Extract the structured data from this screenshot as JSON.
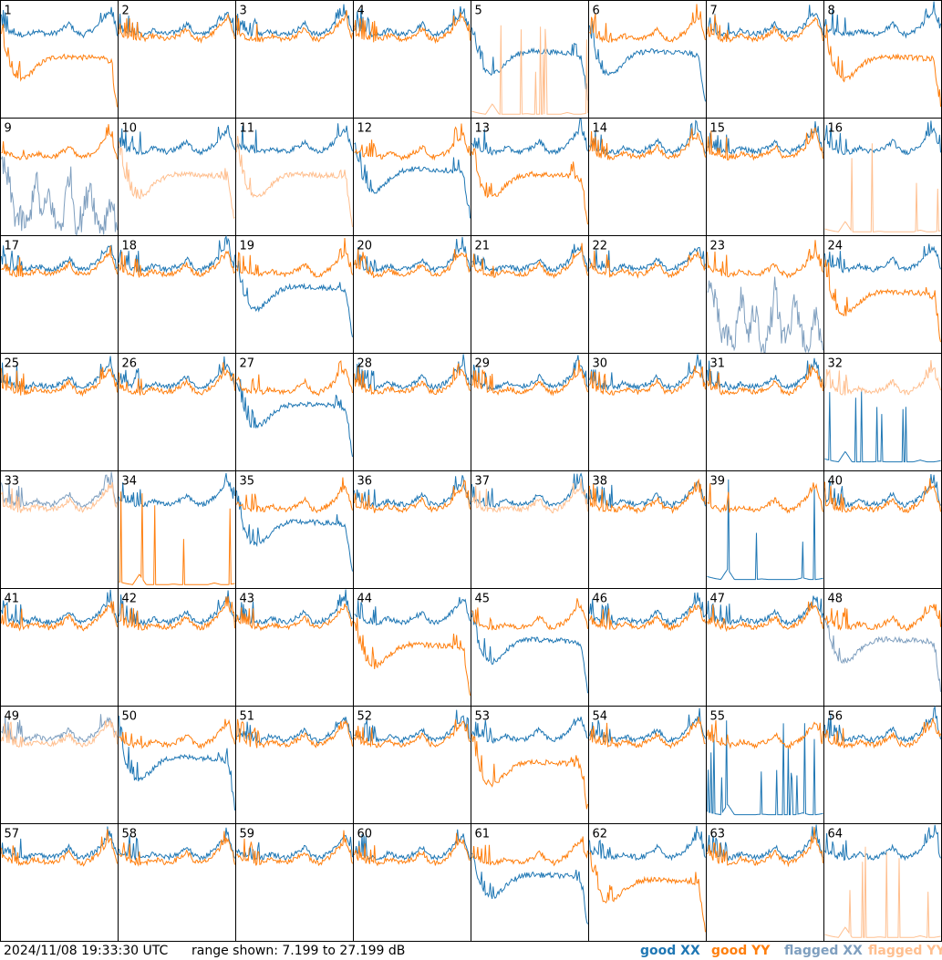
{
  "footer": {
    "timestamp": "2024/11/08 19:33:30 UTC",
    "range_text": "range shown: 7.199 to 27.199 dB"
  },
  "legend": [
    {
      "label": "good XX",
      "color": "#1f77b4"
    },
    {
      "label": "good YY",
      "color": "#ff7f0e"
    },
    {
      "label": "flagged XX",
      "color": "#7f9fbf"
    },
    {
      "label": "flagged YY",
      "color": "#ffbf8f"
    }
  ],
  "chart_data": {
    "type": "line",
    "title": "",
    "grid": {
      "rows": 8,
      "cols": 8
    },
    "ylim": [
      7.199,
      27.199
    ],
    "yunit": "dB",
    "panel_labels": [
      "1",
      "2",
      "3",
      "4",
      "5",
      "6",
      "7",
      "8",
      "9",
      "10",
      "11",
      "12",
      "13",
      "14",
      "15",
      "16",
      "17",
      "18",
      "19",
      "20",
      "21",
      "22",
      "23",
      "24",
      "25",
      "26",
      "27",
      "28",
      "29",
      "30",
      "31",
      "32",
      "33",
      "34",
      "35",
      "36",
      "37",
      "38",
      "39",
      "40",
      "41",
      "42",
      "43",
      "44",
      "45",
      "46",
      "47",
      "48",
      "49",
      "50",
      "51",
      "52",
      "53",
      "54",
      "55",
      "56",
      "57",
      "58",
      "59",
      "60",
      "61",
      "62",
      "63",
      "64"
    ],
    "series": [
      {
        "name": "good XX",
        "color": "#1f77b4"
      },
      {
        "name": "good YY",
        "color": "#ff7f0e"
      },
      {
        "name": "flagged XX",
        "color": "#7f9fbf"
      },
      {
        "name": "flagged YY",
        "color": "#ffbf8f"
      }
    ],
    "panel_shapes": {
      "normal": [
        22,
        21.5,
        21,
        20.8,
        21,
        21.6,
        21.2,
        20.9,
        21.2,
        21.8,
        22.8,
        21.2,
        20.8,
        21.4,
        22.2,
        23.6,
        24.8,
        21
      ],
      "dip": [
        22,
        17,
        14.5,
        14,
        14.8,
        16,
        17,
        17.6,
        17.9,
        18,
        17.9,
        17.9,
        17.8,
        17.8,
        17.7,
        17.6,
        17,
        9
      ],
      "lowspiky": [
        8.5,
        8.2,
        8,
        9.8,
        8,
        8,
        8,
        8,
        8.1,
        8,
        8,
        8,
        8,
        8,
        8.3,
        8,
        8,
        8.2
      ],
      "chaotic": [
        19,
        16,
        10,
        9,
        8,
        17,
        9,
        14,
        8,
        9,
        18,
        8,
        10,
        16,
        9,
        8,
        13,
        8
      ]
    },
    "panels": [
      {
        "xx": "normal",
        "yy": "dip",
        "xxc": "good",
        "yyc": "good"
      },
      {
        "xx": "normal",
        "yy": "normal",
        "xxc": "good",
        "yyc": "good"
      },
      {
        "xx": "normal",
        "yy": "normal",
        "xxc": "good",
        "yyc": "good"
      },
      {
        "xx": "normal",
        "yy": "normal",
        "xxc": "good",
        "yyc": "good"
      },
      {
        "xx": "dip",
        "yy": "lowspiky",
        "xxc": "good",
        "yyc": "flagged"
      },
      {
        "xx": "dip",
        "yy": "normal",
        "xxc": "good",
        "yyc": "good"
      },
      {
        "xx": "normal",
        "yy": "normal",
        "xxc": "good",
        "yyc": "good"
      },
      {
        "xx": "normal",
        "yy": "dip",
        "xxc": "good",
        "yyc": "good"
      },
      {
        "xx": "chaotic",
        "yy": "normal",
        "xxc": "flagged",
        "yyc": "good"
      },
      {
        "xx": "normal",
        "yy": "dip",
        "xxc": "good",
        "yyc": "flagged"
      },
      {
        "xx": "normal",
        "yy": "dip",
        "xxc": "good",
        "yyc": "flagged"
      },
      {
        "xx": "dip",
        "yy": "normal",
        "xxc": "good",
        "yyc": "good"
      },
      {
        "xx": "normal",
        "yy": "dip",
        "xxc": "good",
        "yyc": "good"
      },
      {
        "xx": "normal",
        "yy": "normal",
        "xxc": "good",
        "yyc": "good"
      },
      {
        "xx": "normal",
        "yy": "normal",
        "xxc": "good",
        "yyc": "good"
      },
      {
        "xx": "normal",
        "yy": "lowspiky",
        "xxc": "good",
        "yyc": "flagged"
      },
      {
        "xx": "normal",
        "yy": "normal",
        "xxc": "good",
        "yyc": "good"
      },
      {
        "xx": "normal",
        "yy": "normal",
        "xxc": "good",
        "yyc": "good"
      },
      {
        "xx": "dip",
        "yy": "normal",
        "xxc": "good",
        "yyc": "good"
      },
      {
        "xx": "normal",
        "yy": "normal",
        "xxc": "good",
        "yyc": "good"
      },
      {
        "xx": "normal",
        "yy": "normal",
        "xxc": "good",
        "yyc": "good"
      },
      {
        "xx": "normal",
        "yy": "normal",
        "xxc": "good",
        "yyc": "good"
      },
      {
        "xx": "chaotic",
        "yy": "normal",
        "xxc": "flagged",
        "yyc": "good"
      },
      {
        "xx": "normal",
        "yy": "dip",
        "xxc": "good",
        "yyc": "good"
      },
      {
        "xx": "normal",
        "yy": "normal",
        "xxc": "good",
        "yyc": "good"
      },
      {
        "xx": "normal",
        "yy": "normal",
        "xxc": "good",
        "yyc": "good"
      },
      {
        "xx": "dip",
        "yy": "normal",
        "xxc": "good",
        "yyc": "good"
      },
      {
        "xx": "normal",
        "yy": "normal",
        "xxc": "good",
        "yyc": "good"
      },
      {
        "xx": "normal",
        "yy": "normal",
        "xxc": "good",
        "yyc": "good"
      },
      {
        "xx": "normal",
        "yy": "normal",
        "xxc": "good",
        "yyc": "good"
      },
      {
        "xx": "normal",
        "yy": "normal",
        "xxc": "good",
        "yyc": "good"
      },
      {
        "xx": "lowspiky",
        "yy": "normal",
        "xxc": "good",
        "yyc": "flagged"
      },
      {
        "xx": "normal",
        "yy": "normal",
        "xxc": "flagged",
        "yyc": "flagged"
      },
      {
        "xx": "normal",
        "yy": "lowspiky",
        "xxc": "good",
        "yyc": "good"
      },
      {
        "xx": "dip",
        "yy": "normal",
        "xxc": "good",
        "yyc": "good"
      },
      {
        "xx": "normal",
        "yy": "normal",
        "xxc": "good",
        "yyc": "good"
      },
      {
        "xx": "normal",
        "yy": "normal",
        "xxc": "good",
        "yyc": "flagged"
      },
      {
        "xx": "normal",
        "yy": "normal",
        "xxc": "good",
        "yyc": "good"
      },
      {
        "xx": "lowspiky",
        "yy": "normal",
        "xxc": "good",
        "yyc": "good"
      },
      {
        "xx": "normal",
        "yy": "normal",
        "xxc": "good",
        "yyc": "good"
      },
      {
        "xx": "normal",
        "yy": "normal",
        "xxc": "good",
        "yyc": "good"
      },
      {
        "xx": "normal",
        "yy": "normal",
        "xxc": "good",
        "yyc": "good"
      },
      {
        "xx": "normal",
        "yy": "normal",
        "xxc": "good",
        "yyc": "good"
      },
      {
        "xx": "normal",
        "yy": "dip",
        "xxc": "good",
        "yyc": "good"
      },
      {
        "xx": "dip",
        "yy": "normal",
        "xxc": "good",
        "yyc": "good"
      },
      {
        "xx": "normal",
        "yy": "normal",
        "xxc": "good",
        "yyc": "good"
      },
      {
        "xx": "normal",
        "yy": "normal",
        "xxc": "good",
        "yyc": "good"
      },
      {
        "xx": "dip",
        "yy": "normal",
        "xxc": "flagged",
        "yyc": "good"
      },
      {
        "xx": "normal",
        "yy": "normal",
        "xxc": "flagged",
        "yyc": "flagged"
      },
      {
        "xx": "dip",
        "yy": "normal",
        "xxc": "good",
        "yyc": "good"
      },
      {
        "xx": "normal",
        "yy": "normal",
        "xxc": "good",
        "yyc": "good"
      },
      {
        "xx": "normal",
        "yy": "normal",
        "xxc": "good",
        "yyc": "good"
      },
      {
        "xx": "normal",
        "yy": "dip",
        "xxc": "good",
        "yyc": "good"
      },
      {
        "xx": "normal",
        "yy": "normal",
        "xxc": "good",
        "yyc": "good"
      },
      {
        "xx": "lowspiky",
        "yy": "normal",
        "xxc": "good",
        "yyc": "good"
      },
      {
        "xx": "normal",
        "yy": "normal",
        "xxc": "good",
        "yyc": "good"
      },
      {
        "xx": "normal",
        "yy": "normal",
        "xxc": "good",
        "yyc": "good"
      },
      {
        "xx": "normal",
        "yy": "normal",
        "xxc": "good",
        "yyc": "good"
      },
      {
        "xx": "normal",
        "yy": "normal",
        "xxc": "good",
        "yyc": "good"
      },
      {
        "xx": "normal",
        "yy": "normal",
        "xxc": "good",
        "yyc": "good"
      },
      {
        "xx": "dip",
        "yy": "normal",
        "xxc": "good",
        "yyc": "good"
      },
      {
        "xx": "normal",
        "yy": "dip",
        "xxc": "good",
        "yyc": "good"
      },
      {
        "xx": "normal",
        "yy": "normal",
        "xxc": "good",
        "yyc": "good"
      },
      {
        "xx": "normal",
        "yy": "lowspiky",
        "xxc": "good",
        "yyc": "flagged"
      }
    ]
  }
}
